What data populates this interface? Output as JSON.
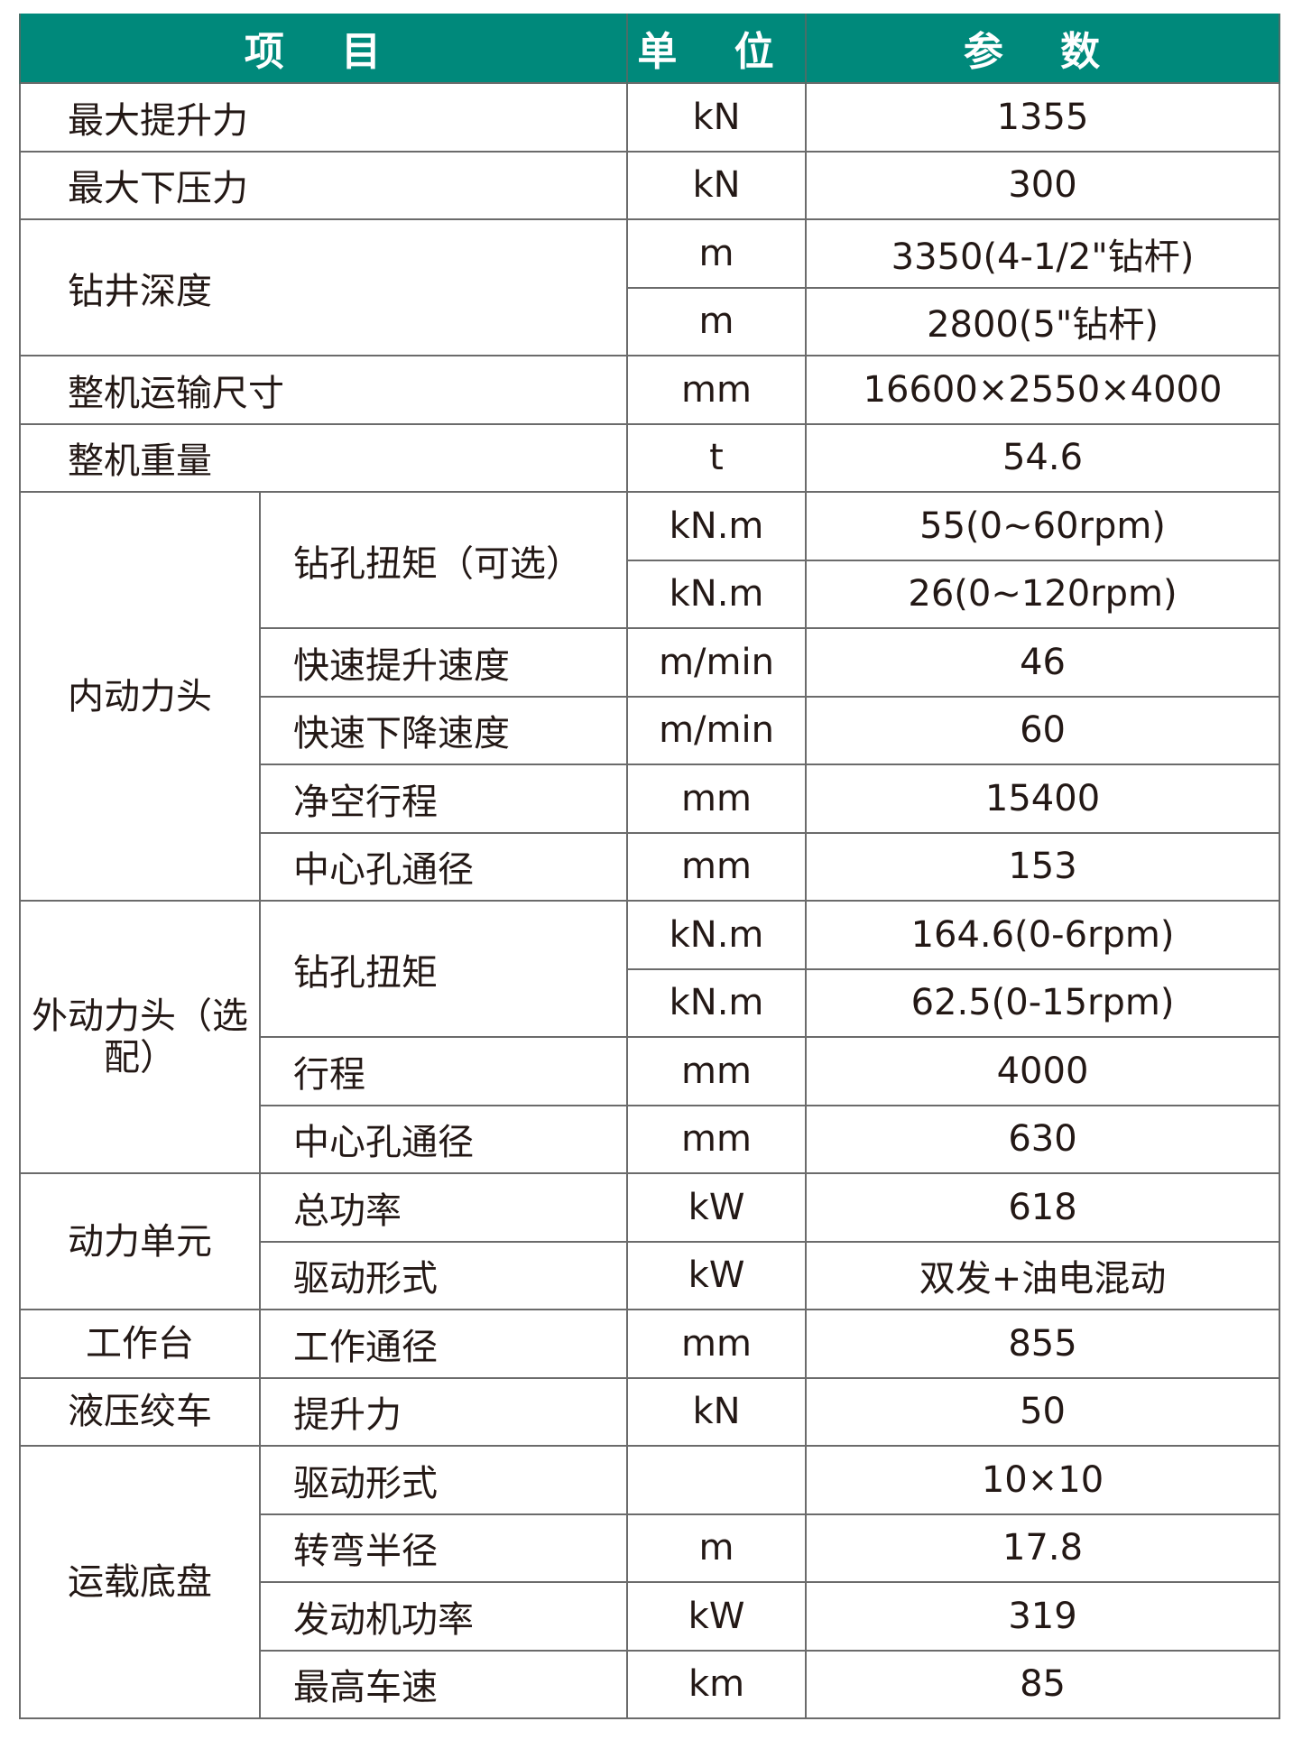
{
  "header": {
    "item": "项 目",
    "unit": "单 位",
    "param": "参 数"
  },
  "colors": {
    "header_bg": "#00897b",
    "header_text": "#ffffff"
  },
  "rows": [
    {
      "item": "最大提升力",
      "unit": "kN",
      "value": "1355"
    },
    {
      "item": "最大下压力",
      "unit": "kN",
      "value": "300"
    },
    {
      "item": "钻井深度",
      "entries": [
        {
          "unit": "m",
          "value": "3350(4-1/2\"钻杆)"
        },
        {
          "unit": "m",
          "value": "2800(5\"钻杆)"
        }
      ]
    },
    {
      "item": "整机运输尺寸",
      "unit": "mm",
      "value": "16600×2550×4000"
    },
    {
      "item": "整机重量",
      "unit": "t",
      "value": "54.6"
    }
  ],
  "groups": [
    {
      "name": "内动力头",
      "items": [
        {
          "label": "钻孔扭矩（可选）",
          "entries": [
            {
              "unit": "kN.m",
              "value": "55(0~60rpm)"
            },
            {
              "unit": "kN.m",
              "value": "26(0~120rpm)"
            }
          ]
        },
        {
          "label": "快速提升速度",
          "unit": "m/min",
          "value": "46"
        },
        {
          "label": "快速下降速度",
          "unit": "m/min",
          "value": "60"
        },
        {
          "label": "净空行程",
          "unit": "mm",
          "value": "15400"
        },
        {
          "label": "中心孔通径",
          "unit": "mm",
          "value": "153"
        }
      ]
    },
    {
      "name": "外动力头（选配）",
      "items": [
        {
          "label": "钻孔扭矩",
          "entries": [
            {
              "unit": "kN.m",
              "value": "164.6(0-6rpm)"
            },
            {
              "unit": "kN.m",
              "value": "62.5(0-15rpm)"
            }
          ]
        },
        {
          "label": "行程",
          "unit": "mm",
          "value": "4000"
        },
        {
          "label": "中心孔通径",
          "unit": "mm",
          "value": "630"
        }
      ]
    },
    {
      "name": "动力单元",
      "items": [
        {
          "label": "总功率",
          "unit": "kW",
          "value": "618"
        },
        {
          "label": "驱动形式",
          "unit": "kW",
          "value": "双发+油电混动"
        }
      ]
    },
    {
      "name": "工作台",
      "items": [
        {
          "label": "工作通径",
          "unit": "mm",
          "value": "855"
        }
      ]
    },
    {
      "name": "液压绞车",
      "items": [
        {
          "label": "提升力",
          "unit": "kN",
          "value": "50"
        }
      ]
    },
    {
      "name": "运载底盘",
      "items": [
        {
          "label": "驱动形式",
          "unit": "",
          "value": "10×10"
        },
        {
          "label": "转弯半径",
          "unit": "m",
          "value": "17.8"
        },
        {
          "label": "发动机功率",
          "unit": "kW",
          "value": "319"
        },
        {
          "label": "最高车速",
          "unit": "km",
          "value": "85"
        }
      ]
    }
  ]
}
